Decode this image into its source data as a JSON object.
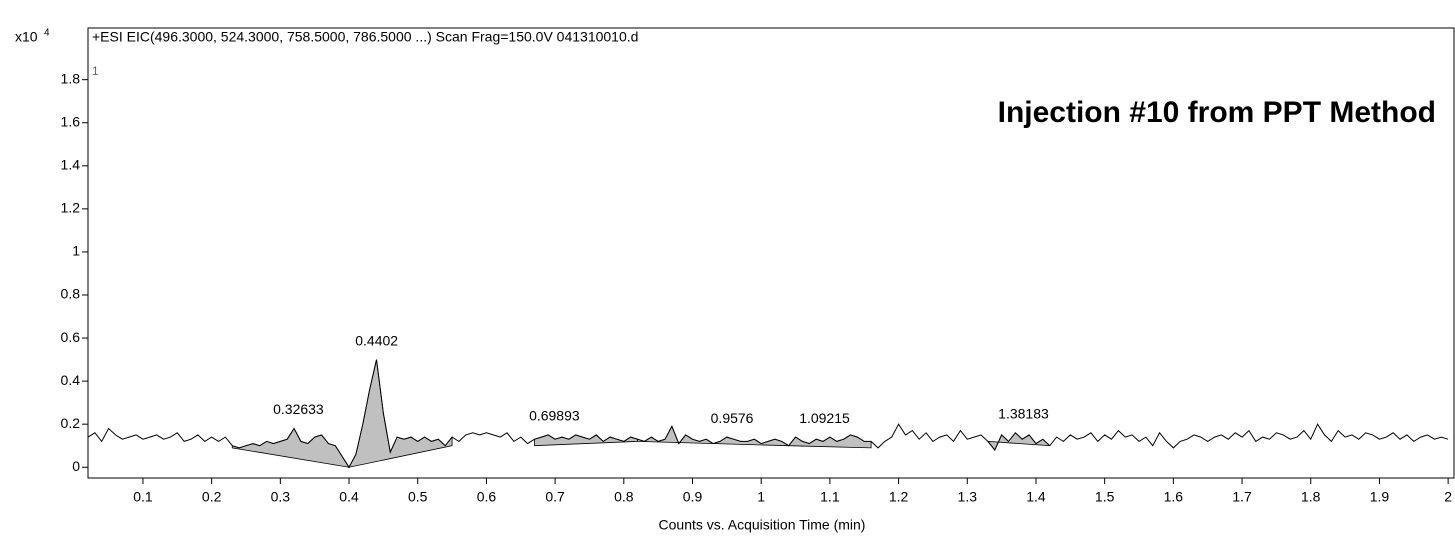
{
  "chart_data": {
    "type": "line",
    "title": "+ESI EIC(496.3000, 524.3000, 758.5000, 786.5000 ...) Scan Frag=150.0V 041310010.d",
    "multiplier_base": "x10",
    "multiplier_exponent": "4",
    "trace_label": "1",
    "annotation": "Injection #10 from PPT Method",
    "x_label": "Counts vs. Acquisition Time (min)",
    "x": [
      0.02,
      0.03,
      0.04,
      0.05,
      0.06,
      0.07,
      0.08,
      0.09,
      0.1,
      0.11,
      0.12,
      0.13,
      0.14,
      0.15,
      0.16,
      0.17,
      0.18,
      0.19,
      0.2,
      0.21,
      0.22,
      0.23,
      0.24,
      0.25,
      0.26,
      0.27,
      0.28,
      0.29,
      0.3,
      0.31,
      0.32,
      0.33,
      0.34,
      0.35,
      0.36,
      0.37,
      0.38,
      0.39,
      0.4,
      0.41,
      0.42,
      0.43,
      0.44,
      0.45,
      0.46,
      0.47,
      0.48,
      0.49,
      0.5,
      0.51,
      0.52,
      0.53,
      0.54,
      0.55,
      0.56,
      0.57,
      0.58,
      0.59,
      0.6,
      0.61,
      0.62,
      0.63,
      0.64,
      0.65,
      0.66,
      0.67,
      0.68,
      0.69,
      0.7,
      0.71,
      0.72,
      0.73,
      0.74,
      0.75,
      0.76,
      0.77,
      0.78,
      0.79,
      0.8,
      0.81,
      0.82,
      0.83,
      0.84,
      0.85,
      0.86,
      0.87,
      0.88,
      0.89,
      0.9,
      0.91,
      0.92,
      0.93,
      0.94,
      0.95,
      0.96,
      0.97,
      0.98,
      0.99,
      1.0,
      1.01,
      1.02,
      1.03,
      1.04,
      1.05,
      1.06,
      1.07,
      1.08,
      1.09,
      1.1,
      1.11,
      1.12,
      1.13,
      1.14,
      1.15,
      1.16,
      1.17,
      1.18,
      1.19,
      1.2,
      1.21,
      1.22,
      1.23,
      1.24,
      1.25,
      1.26,
      1.27,
      1.28,
      1.29,
      1.3,
      1.31,
      1.32,
      1.33,
      1.34,
      1.35,
      1.36,
      1.37,
      1.38,
      1.39,
      1.4,
      1.41,
      1.42,
      1.43,
      1.44,
      1.45,
      1.46,
      1.47,
      1.48,
      1.49,
      1.5,
      1.51,
      1.52,
      1.53,
      1.54,
      1.55,
      1.56,
      1.57,
      1.58,
      1.59,
      1.6,
      1.61,
      1.62,
      1.63,
      1.64,
      1.65,
      1.66,
      1.67,
      1.68,
      1.69,
      1.7,
      1.71,
      1.72,
      1.73,
      1.74,
      1.75,
      1.76,
      1.77,
      1.78,
      1.79,
      1.8,
      1.81,
      1.82,
      1.83,
      1.84,
      1.85,
      1.86,
      1.87,
      1.88,
      1.89,
      1.9,
      1.91,
      1.92,
      1.93,
      1.94,
      1.95,
      1.96,
      1.97,
      1.98,
      1.99,
      2.0
    ],
    "series": [
      {
        "color": "#000000",
        "fill": "#c0c0c0",
        "values": [
          0.14,
          0.16,
          0.12,
          0.18,
          0.15,
          0.13,
          0.14,
          0.15,
          0.13,
          0.14,
          0.15,
          0.13,
          0.14,
          0.16,
          0.12,
          0.13,
          0.15,
          0.12,
          0.14,
          0.12,
          0.14,
          0.1,
          0.09,
          0.1,
          0.11,
          0.1,
          0.12,
          0.11,
          0.12,
          0.13,
          0.18,
          0.12,
          0.11,
          0.14,
          0.15,
          0.11,
          0.1,
          0.05,
          0.0,
          0.06,
          0.2,
          0.36,
          0.5,
          0.25,
          0.07,
          0.14,
          0.13,
          0.14,
          0.12,
          0.14,
          0.12,
          0.13,
          0.1,
          0.14,
          0.12,
          0.15,
          0.16,
          0.15,
          0.16,
          0.15,
          0.14,
          0.16,
          0.12,
          0.14,
          0.11,
          0.13,
          0.14,
          0.15,
          0.13,
          0.14,
          0.13,
          0.15,
          0.14,
          0.13,
          0.15,
          0.12,
          0.14,
          0.13,
          0.12,
          0.14,
          0.13,
          0.12,
          0.14,
          0.12,
          0.13,
          0.19,
          0.11,
          0.15,
          0.13,
          0.12,
          0.13,
          0.11,
          0.12,
          0.14,
          0.13,
          0.12,
          0.12,
          0.13,
          0.11,
          0.12,
          0.13,
          0.12,
          0.1,
          0.14,
          0.12,
          0.11,
          0.13,
          0.12,
          0.14,
          0.12,
          0.13,
          0.15,
          0.14,
          0.12,
          0.12,
          0.09,
          0.12,
          0.14,
          0.2,
          0.15,
          0.17,
          0.13,
          0.16,
          0.12,
          0.14,
          0.15,
          0.12,
          0.17,
          0.13,
          0.14,
          0.15,
          0.12,
          0.08,
          0.15,
          0.12,
          0.16,
          0.13,
          0.15,
          0.11,
          0.13,
          0.1,
          0.14,
          0.12,
          0.15,
          0.13,
          0.14,
          0.16,
          0.12,
          0.15,
          0.13,
          0.17,
          0.14,
          0.15,
          0.12,
          0.14,
          0.1,
          0.16,
          0.12,
          0.09,
          0.12,
          0.13,
          0.15,
          0.14,
          0.12,
          0.14,
          0.15,
          0.13,
          0.16,
          0.14,
          0.17,
          0.12,
          0.14,
          0.13,
          0.16,
          0.15,
          0.13,
          0.14,
          0.17,
          0.13,
          0.2,
          0.15,
          0.12,
          0.17,
          0.14,
          0.15,
          0.13,
          0.16,
          0.15,
          0.13,
          0.14,
          0.16,
          0.13,
          0.15,
          0.12,
          0.14,
          0.15,
          0.13,
          0.14,
          0.13
        ]
      }
    ],
    "peaks": [
      0.32633,
      0.4402,
      0.69893,
      0.9576,
      1.09215,
      1.38183
    ],
    "integrations": [
      {
        "start": 0.23,
        "end": 0.4,
        "baseline": [
          0.09,
          0.0
        ]
      },
      {
        "start": 0.4,
        "end": 0.55,
        "baseline": [
          0.0,
          0.1
        ]
      },
      {
        "start": 0.67,
        "end": 0.82,
        "baseline": [
          0.1,
          0.12
        ]
      },
      {
        "start": 0.82,
        "end": 1.04,
        "baseline": [
          0.12,
          0.1
        ]
      },
      {
        "start": 1.04,
        "end": 1.16,
        "baseline": [
          0.1,
          0.09
        ]
      },
      {
        "start": 1.33,
        "end": 1.42,
        "baseline": [
          0.12,
          0.1
        ]
      }
    ],
    "xlim": [
      0.02,
      2.01
    ],
    "ylim": [
      -0.05,
      2.04
    ],
    "xticks": [
      0.1,
      0.2,
      0.3,
      0.4,
      0.5,
      0.6,
      0.7,
      0.8,
      0.9,
      1,
      1.1,
      1.2,
      1.3,
      1.4,
      1.5,
      1.6,
      1.7,
      1.8,
      1.9,
      2
    ],
    "yticks": [
      0,
      0.2,
      0.4,
      0.6,
      0.8,
      1,
      1.2,
      1.4,
      1.6,
      1.8
    ]
  }
}
